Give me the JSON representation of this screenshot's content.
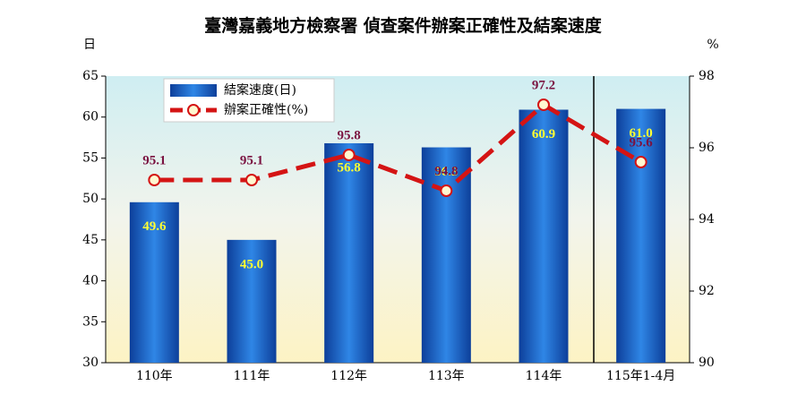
{
  "chart_data": {
    "type": "combo",
    "title": "臺灣嘉義地方檢察署  偵查案件辦案正確性及結案速度",
    "y_unit": "日",
    "y2_unit": "%",
    "categories": [
      "110年",
      "111年",
      "112年",
      "113年",
      "114年",
      "115年1-4月"
    ],
    "series": [
      {
        "name": "結案速度(日)",
        "type": "bar",
        "color": "#1565c8",
        "values": [
          49.6,
          45.0,
          56.8,
          56.3,
          60.9,
          61.0
        ],
        "value_labels": [
          "49.6",
          "45.0",
          "56.8",
          "56.3",
          "60.9",
          "61.0"
        ],
        "label_color": "#ffff33"
      },
      {
        "name": "辦案正確性(%)",
        "type": "line",
        "axis": "y2",
        "color": "#d41414",
        "values": [
          95.1,
          95.1,
          95.8,
          94.8,
          97.2,
          95.6
        ],
        "label_color": "#7a1240"
      }
    ],
    "ylim": [
      30,
      65
    ],
    "yticks": [
      30,
      35,
      40,
      45,
      50,
      55,
      60,
      65
    ],
    "y2lim": [
      90,
      98
    ],
    "y2ticks": [
      90,
      92,
      94,
      96,
      98
    ]
  }
}
